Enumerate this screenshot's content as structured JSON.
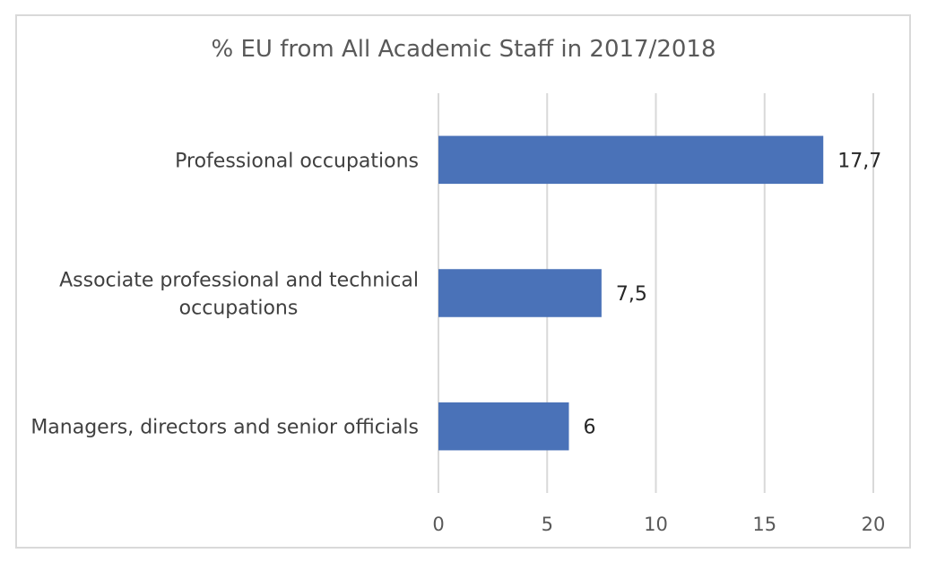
{
  "chart_data": {
    "type": "bar",
    "orientation": "horizontal",
    "title": "% EU from All Academic Staff in 2017/2018",
    "categories": [
      "Professional occupations",
      "Associate professional and technical occupations",
      "Managers, directors and senior officials"
    ],
    "category_lines": [
      [
        "Professional occupations"
      ],
      [
        "Associate professional and technical",
        "occupations"
      ],
      [
        "Managers, directors and senior officials"
      ]
    ],
    "values": [
      17.7,
      7.5,
      6
    ],
    "data_labels": [
      "17,7",
      "7,5",
      "6"
    ],
    "x_ticks": [
      "0",
      "5",
      "10",
      "15",
      "20"
    ],
    "xlim": [
      0,
      20
    ],
    "xlabel": "",
    "ylabel": "",
    "grid": true,
    "legend": false,
    "colors": {
      "bar": "#4a72b8",
      "grid": "#d9d9d9"
    }
  }
}
